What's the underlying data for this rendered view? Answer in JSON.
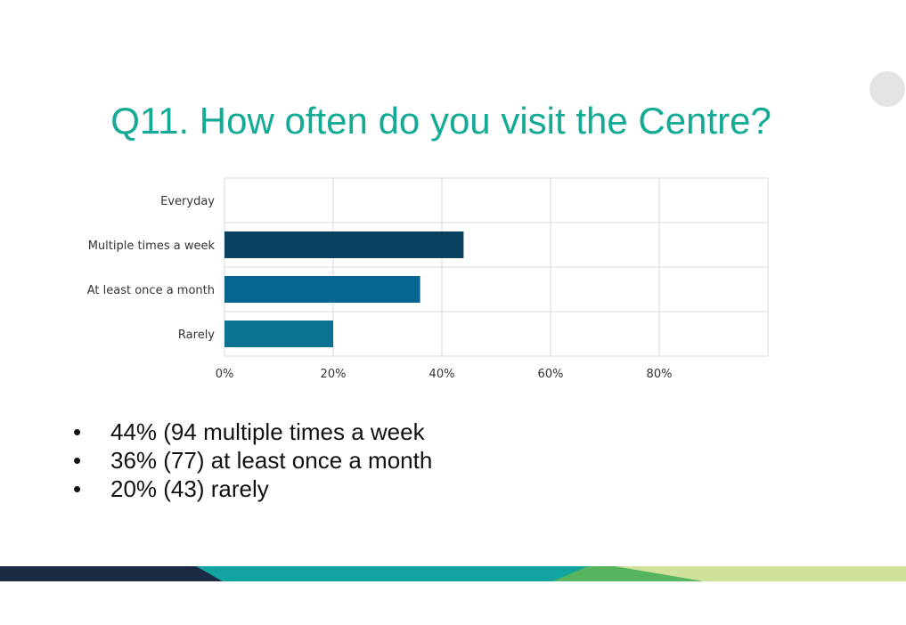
{
  "slide": {
    "title": "Q11. How often do you visit the Centre?",
    "bullets": [
      "44% (94 multiple times a week",
      "36% (77) at least once a month",
      "20% (43) rarely"
    ],
    "bullet_glyph": "•",
    "colors": {
      "title": "#13aa96",
      "band_navy": "#1d2a44",
      "band_teal": "#12a49e",
      "band_green": "#56b45e",
      "band_lime": "#cfe19b"
    }
  },
  "chart_data": {
    "type": "bar",
    "orientation": "horizontal",
    "categories": [
      "Everyday",
      "Multiple times a week",
      "At least once a month",
      "Rarely"
    ],
    "values": [
      0,
      44,
      36,
      20
    ],
    "bar_colors": [
      "#0a4060",
      "#0a4060",
      "#076591",
      "#0c7294"
    ],
    "xlim": [
      0,
      100
    ],
    "xticks": [
      0,
      20,
      40,
      60,
      80
    ],
    "xtick_labels": [
      "0%",
      "20%",
      "40%",
      "60%",
      "80%"
    ],
    "grid": true,
    "title": "",
    "xlabel": "",
    "ylabel": ""
  }
}
